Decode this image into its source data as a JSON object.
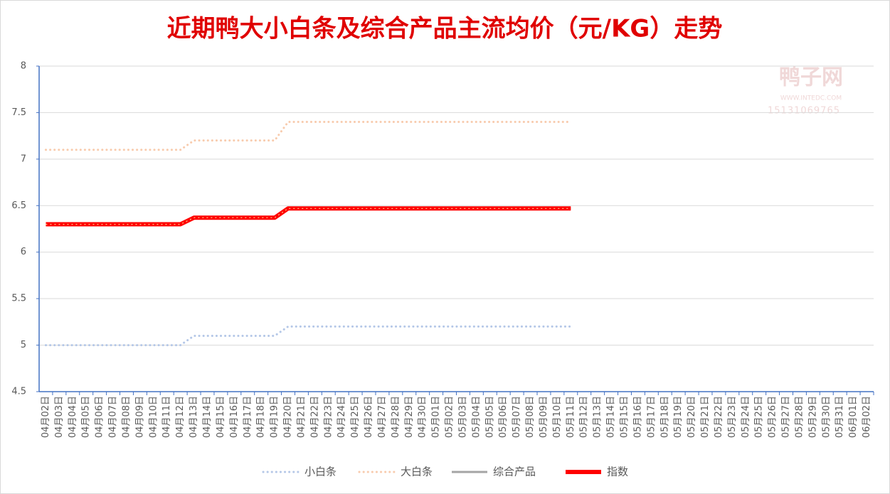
{
  "chart_data": {
    "type": "line",
    "title": "近期鸭大小白条及综合产品主流均价（元/KG）走势",
    "watermark": [
      "鸭子网",
      "WWW.INTEDC.COM",
      "15131069765"
    ],
    "categories": [
      "04月02日",
      "04月03日",
      "04月04日",
      "04月05日",
      "04月06日",
      "04月07日",
      "04月08日",
      "04月09日",
      "04月10日",
      "04月11日",
      "04月12日",
      "04月13日",
      "04月14日",
      "04月15日",
      "04月16日",
      "04月17日",
      "04月18日",
      "04月19日",
      "04月20日",
      "04月21日",
      "04月22日",
      "04月23日",
      "04月24日",
      "04月25日",
      "04月26日",
      "04月27日",
      "04月28日",
      "04月29日",
      "04月30日",
      "05月01日",
      "05月02日",
      "05月03日",
      "05月04日",
      "05月05日",
      "05月06日",
      "05月07日",
      "05月08日",
      "05月09日",
      "05月10日",
      "05月11日",
      "05月12日",
      "05月13日",
      "05月14日",
      "05月15日",
      "05月16日",
      "05月17日",
      "05月18日",
      "05月19日",
      "05月20日",
      "05月21日",
      "05月22日",
      "05月23日",
      "05月24日",
      "05月25日",
      "05月26日",
      "05月27日",
      "05月28日",
      "05月29日",
      "05月30日",
      "05月31日",
      "06月01日",
      "06月02日"
    ],
    "series": [
      {
        "name": "小白条",
        "color": "#b4c7e7",
        "line_style": "dotted",
        "values": [
          5,
          5,
          5,
          5,
          5,
          5,
          5,
          5,
          5,
          5,
          5,
          5.1,
          5.1,
          5.1,
          5.1,
          5.1,
          5.1,
          5.1,
          5.2,
          5.2,
          5.2,
          5.2,
          5.2,
          5.2,
          5.2,
          5.2,
          5.2,
          5.2,
          5.2,
          5.2,
          5.2,
          5.2,
          5.2,
          5.2,
          5.2,
          5.2,
          5.2,
          5.2,
          5.2,
          5.2,
          null,
          null,
          null,
          null,
          null,
          null,
          null,
          null,
          null,
          null,
          null,
          null,
          null,
          null,
          null,
          null,
          null,
          null,
          null,
          null,
          null,
          null
        ]
      },
      {
        "name": "大白条",
        "color": "#f8cbad",
        "line_style": "dotted",
        "values": [
          7.1,
          7.1,
          7.1,
          7.1,
          7.1,
          7.1,
          7.1,
          7.1,
          7.1,
          7.1,
          7.1,
          7.2,
          7.2,
          7.2,
          7.2,
          7.2,
          7.2,
          7.2,
          7.4,
          7.4,
          7.4,
          7.4,
          7.4,
          7.4,
          7.4,
          7.4,
          7.4,
          7.4,
          7.4,
          7.4,
          7.4,
          7.4,
          7.4,
          7.4,
          7.4,
          7.4,
          7.4,
          7.4,
          7.4,
          7.4,
          null,
          null,
          null,
          null,
          null,
          null,
          null,
          null,
          null,
          null,
          null,
          null,
          null,
          null,
          null,
          null,
          null,
          null,
          null,
          null,
          null,
          null
        ]
      },
      {
        "name": "综合产品",
        "color": "#a5a5a5",
        "line_style": "solid",
        "values": [
          6.3,
          6.3,
          6.3,
          6.3,
          6.3,
          6.3,
          6.3,
          6.3,
          6.3,
          6.3,
          6.3,
          6.37,
          6.37,
          6.37,
          6.37,
          6.37,
          6.37,
          6.37,
          6.47,
          6.47,
          6.47,
          6.47,
          6.47,
          6.47,
          6.47,
          6.47,
          6.47,
          6.47,
          6.47,
          6.47,
          6.47,
          6.47,
          6.47,
          6.47,
          6.47,
          6.47,
          6.47,
          6.47,
          6.47,
          6.47,
          null,
          null,
          null,
          null,
          null,
          null,
          null,
          null,
          null,
          null,
          null,
          null,
          null,
          null,
          null,
          null,
          null,
          null,
          null,
          null,
          null,
          null
        ]
      },
      {
        "name": "指数",
        "color": "#ff0000",
        "line_style": "thick",
        "values": [
          6.3,
          6.3,
          6.3,
          6.3,
          6.3,
          6.3,
          6.3,
          6.3,
          6.3,
          6.3,
          6.3,
          6.37,
          6.37,
          6.37,
          6.37,
          6.37,
          6.37,
          6.37,
          6.47,
          6.47,
          6.47,
          6.47,
          6.47,
          6.47,
          6.47,
          6.47,
          6.47,
          6.47,
          6.47,
          6.47,
          6.47,
          6.47,
          6.47,
          6.47,
          6.47,
          6.47,
          6.47,
          6.47,
          6.47,
          6.47,
          null,
          null,
          null,
          null,
          null,
          null,
          null,
          null,
          null,
          null,
          null,
          null,
          null,
          null,
          null,
          null,
          null,
          null,
          null,
          null,
          null,
          null
        ]
      }
    ],
    "ylim": [
      4.5,
      8
    ],
    "yticks": [
      4.5,
      5,
      5.5,
      6,
      6.5,
      7,
      7.5,
      8
    ],
    "grid": true,
    "legend": "bottom"
  }
}
